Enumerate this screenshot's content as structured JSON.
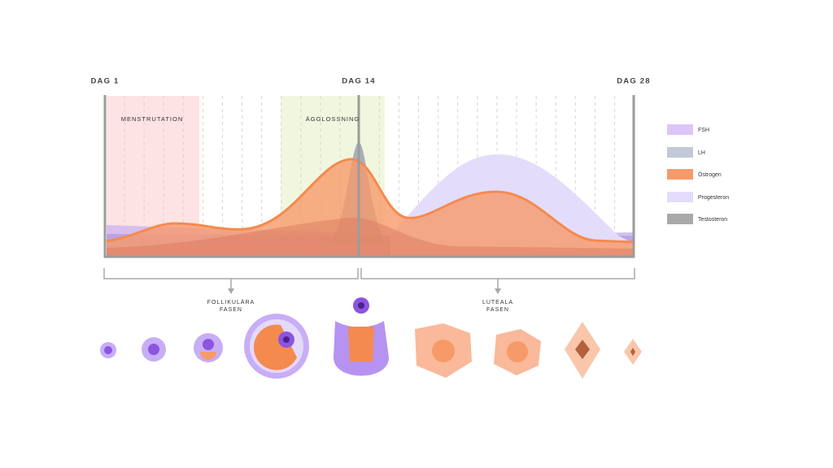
{
  "days": [
    "DAG 1",
    "DAG 14",
    "DAG 28"
  ],
  "regions": [
    "MENSTRUTATION",
    "ÄGGLOSSNING"
  ],
  "legend": [
    "FSH",
    "LH",
    "Östrogen",
    "Progesteron",
    "Testosteron"
  ],
  "phases": [
    [
      "FOLLIKULÄRA",
      "FASEN"
    ],
    [
      "LUTEALA",
      "FASEN"
    ]
  ]
}
